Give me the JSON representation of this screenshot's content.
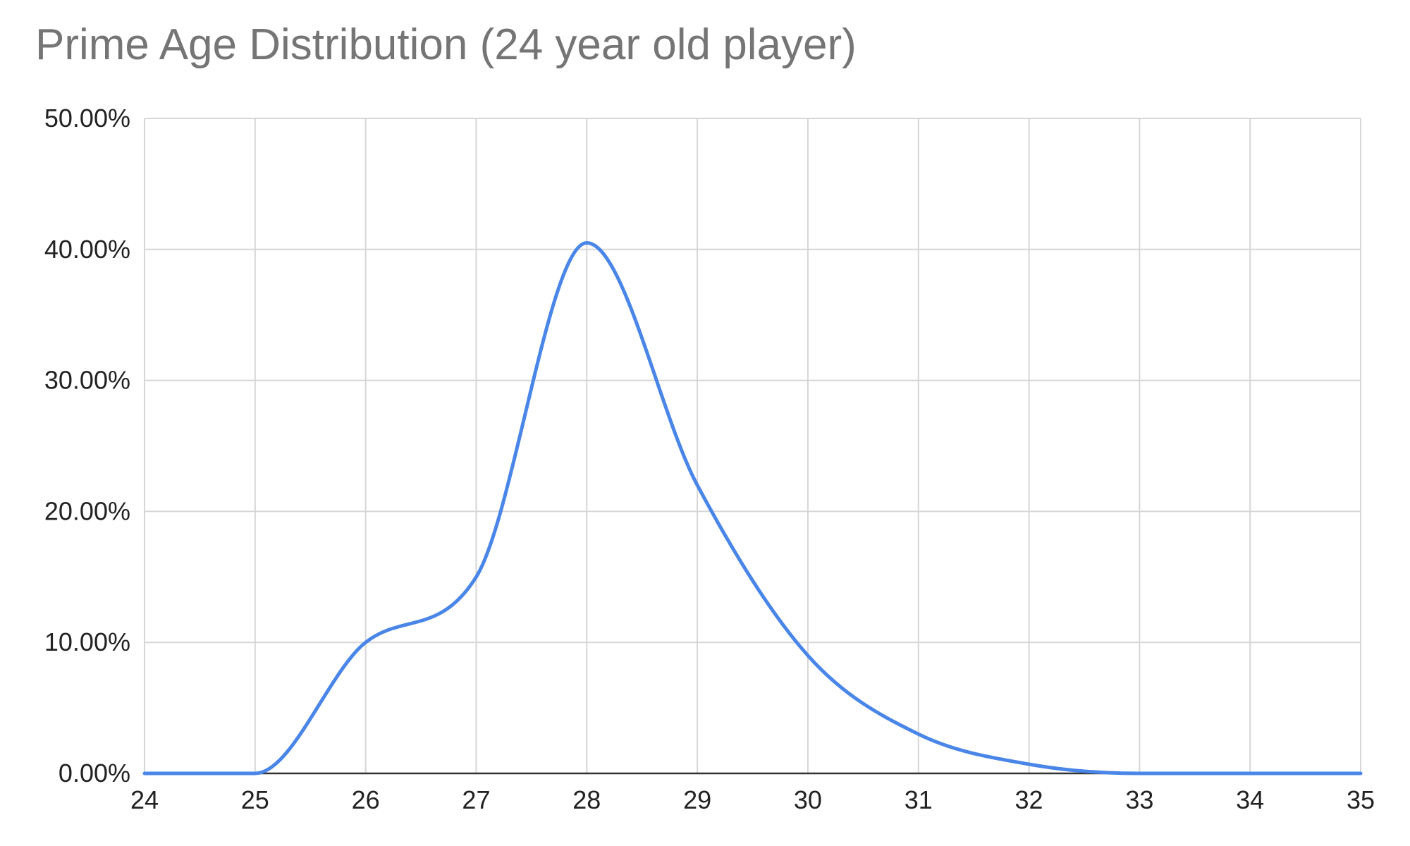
{
  "chart_data": {
    "type": "line",
    "title": "Prime Age Distribution (24 year old player)",
    "xlabel": "",
    "ylabel": "",
    "xlim": [
      24,
      35
    ],
    "ylim": [
      0,
      50
    ],
    "x_ticks": [
      24,
      25,
      26,
      27,
      28,
      29,
      30,
      31,
      32,
      33,
      34,
      35
    ],
    "x_tick_labels": [
      "24",
      "25",
      "26",
      "27",
      "28",
      "29",
      "30",
      "31",
      "32",
      "33",
      "34",
      "35"
    ],
    "y_ticks": [
      0,
      10,
      20,
      30,
      40,
      50
    ],
    "y_tick_labels": [
      "0.00%",
      "10.00%",
      "20.00%",
      "30.00%",
      "40.00%",
      "50.00%"
    ],
    "grid": true,
    "legend": "none",
    "series": [
      {
        "color": "#4a86e8",
        "x": [
          24,
          25,
          26,
          27,
          28,
          29,
          30,
          31,
          32,
          33,
          34,
          35
        ],
        "y": [
          0,
          0,
          10.0,
          15.0,
          40.5,
          22.0,
          9.0,
          3.0,
          0.7,
          0,
          0,
          0
        ]
      }
    ]
  }
}
